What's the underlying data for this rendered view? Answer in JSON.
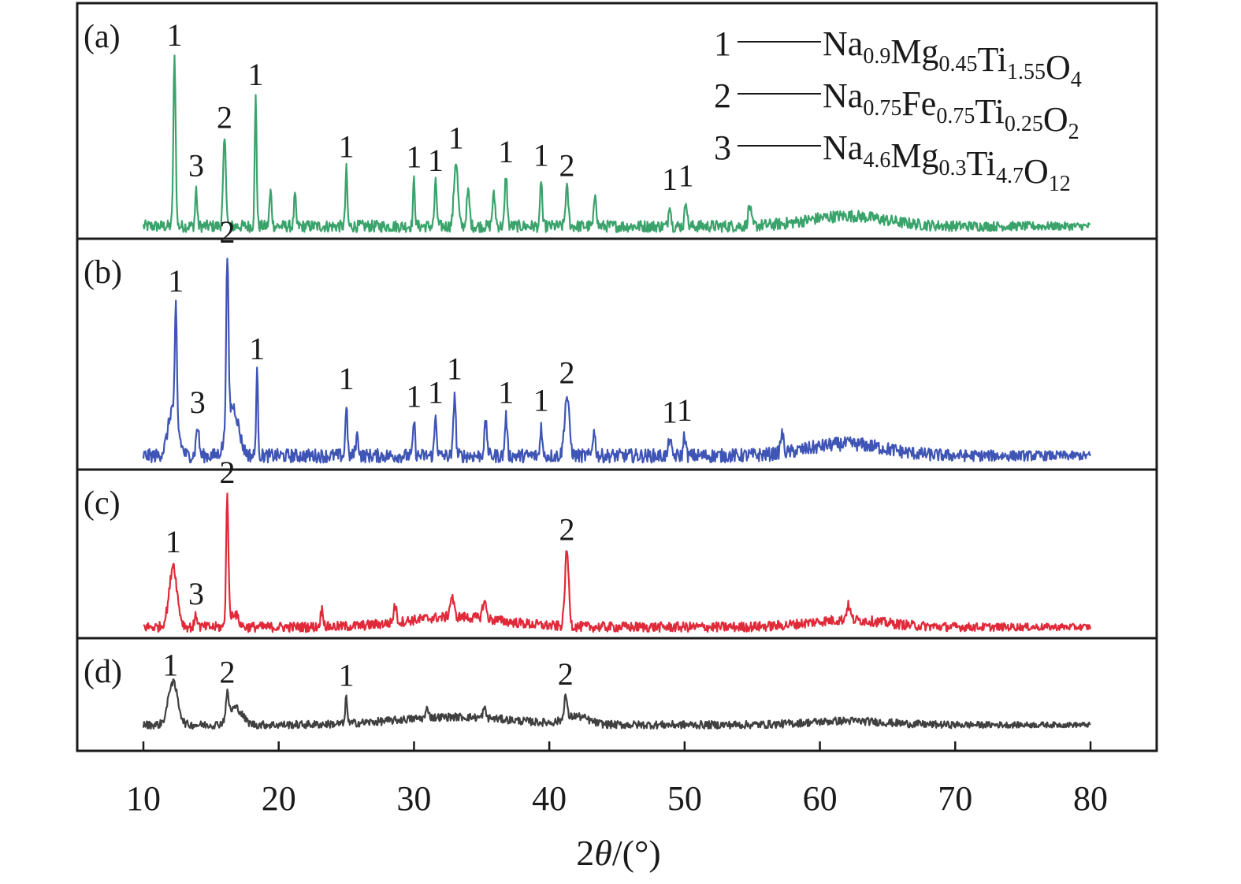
{
  "chart_data": {
    "type": "line",
    "title": "",
    "xlabel_parts": {
      "pre": "2",
      "italic": "θ",
      "post": "/(°)"
    },
    "ylabel": "",
    "xlim": [
      10,
      80
    ],
    "x_ticks": [
      "10",
      "20",
      "30",
      "40",
      "50",
      "60",
      "70",
      "80"
    ],
    "grid": false,
    "legend_position": "top-right",
    "legend": [
      {
        "key": "1",
        "parts": [
          {
            "t": "Na",
            "s": "0.9"
          },
          {
            "t": "Mg",
            "s": "0.45"
          },
          {
            "t": "Ti",
            "s": "1.55"
          },
          {
            "t": "O",
            "s": "4"
          }
        ]
      },
      {
        "key": "2",
        "parts": [
          {
            "t": "Na",
            "s": "0.75"
          },
          {
            "t": "Fe",
            "s": "0.75"
          },
          {
            "t": "Ti",
            "s": "0.25"
          },
          {
            "t": "O",
            "s": "2"
          }
        ]
      },
      {
        "key": "3",
        "parts": [
          {
            "t": "Na",
            "s": "4.6"
          },
          {
            "t": "Mg",
            "s": "0.3"
          },
          {
            "t": "Ti",
            "s": "4.7"
          },
          {
            "t": "O",
            "s": "12"
          }
        ]
      }
    ],
    "panels": [
      {
        "label": "(a)",
        "color": "#3aa36b",
        "baseline": 0.05,
        "noise": 0.035,
        "humps": [
          {
            "c": 62,
            "w": 4,
            "h": 0.06
          }
        ],
        "peaks": [
          {
            "x": 12.3,
            "h": 0.98,
            "w": 0.12,
            "label": "1"
          },
          {
            "x": 13.9,
            "h": 0.22,
            "w": 0.1,
            "label": "3"
          },
          {
            "x": 16.0,
            "h": 0.5,
            "w": 0.15,
            "label": "2"
          },
          {
            "x": 18.3,
            "h": 0.75,
            "w": 0.1,
            "label": "1"
          },
          {
            "x": 19.4,
            "h": 0.2,
            "w": 0.12
          },
          {
            "x": 21.2,
            "h": 0.18,
            "w": 0.1
          },
          {
            "x": 25.0,
            "h": 0.33,
            "w": 0.1,
            "label": "1"
          },
          {
            "x": 30.0,
            "h": 0.27,
            "w": 0.1,
            "label": "1"
          },
          {
            "x": 31.6,
            "h": 0.25,
            "w": 0.12,
            "label": "1"
          },
          {
            "x": 33.1,
            "h": 0.38,
            "w": 0.2,
            "label": "1"
          },
          {
            "x": 34.0,
            "h": 0.2,
            "w": 0.15
          },
          {
            "x": 35.9,
            "h": 0.18,
            "w": 0.15
          },
          {
            "x": 36.8,
            "h": 0.3,
            "w": 0.12,
            "label": "1"
          },
          {
            "x": 39.4,
            "h": 0.28,
            "w": 0.1,
            "label": "1"
          },
          {
            "x": 41.3,
            "h": 0.22,
            "w": 0.15,
            "label": "2"
          },
          {
            "x": 43.4,
            "h": 0.2,
            "w": 0.12
          },
          {
            "x": 48.9,
            "h": 0.14,
            "w": 0.12,
            "label": "1"
          },
          {
            "x": 50.1,
            "h": 0.16,
            "w": 0.12,
            "label": "1"
          },
          {
            "x": 54.8,
            "h": 0.12,
            "w": 0.15
          }
        ]
      },
      {
        "label": "(b)",
        "color": "#3f55b5",
        "baseline": 0.05,
        "noise": 0.035,
        "humps": [
          {
            "c": 12.2,
            "w": 0.5,
            "h": 0.25
          },
          {
            "c": 16.6,
            "w": 0.6,
            "h": 0.25
          },
          {
            "c": 62,
            "w": 4,
            "h": 0.06
          }
        ],
        "peaks": [
          {
            "x": 12.4,
            "h": 0.55,
            "w": 0.1,
            "label": "1"
          },
          {
            "x": 14.0,
            "h": 0.15,
            "w": 0.15,
            "label": "3"
          },
          {
            "x": 16.2,
            "h": 0.85,
            "w": 0.12,
            "label": "2"
          },
          {
            "x": 18.4,
            "h": 0.42,
            "w": 0.1,
            "label": "1"
          },
          {
            "x": 25.0,
            "h": 0.27,
            "w": 0.1,
            "label": "1"
          },
          {
            "x": 25.8,
            "h": 0.1,
            "w": 0.15
          },
          {
            "x": 30.0,
            "h": 0.18,
            "w": 0.1,
            "label": "1"
          },
          {
            "x": 31.6,
            "h": 0.2,
            "w": 0.12,
            "label": "1"
          },
          {
            "x": 33.0,
            "h": 0.32,
            "w": 0.12,
            "label": "1"
          },
          {
            "x": 35.3,
            "h": 0.16,
            "w": 0.15
          },
          {
            "x": 36.8,
            "h": 0.2,
            "w": 0.12,
            "label": "1"
          },
          {
            "x": 39.4,
            "h": 0.16,
            "w": 0.1,
            "label": "1"
          },
          {
            "x": 41.3,
            "h": 0.3,
            "w": 0.25,
            "label": "2"
          },
          {
            "x": 43.3,
            "h": 0.12,
            "w": 0.15
          },
          {
            "x": 48.9,
            "h": 0.1,
            "w": 0.12,
            "label": "1"
          },
          {
            "x": 50.0,
            "h": 0.11,
            "w": 0.12,
            "label": "1"
          },
          {
            "x": 57.2,
            "h": 0.1,
            "w": 0.15
          }
        ]
      },
      {
        "label": "(c)",
        "color": "#e02a3a",
        "baseline": 0.05,
        "noise": 0.035,
        "humps": [
          {
            "c": 12.2,
            "w": 0.45,
            "h": 0.36
          },
          {
            "c": 16.7,
            "w": 0.4,
            "h": 0.1
          },
          {
            "c": 33,
            "w": 5,
            "h": 0.07
          },
          {
            "c": 62,
            "w": 4,
            "h": 0.05
          }
        ],
        "peaks": [
          {
            "x": 12.2,
            "h": 0.08,
            "w": 0.2,
            "label": "1"
          },
          {
            "x": 13.9,
            "h": 0.08,
            "w": 0.15,
            "label": "3"
          },
          {
            "x": 16.2,
            "h": 0.9,
            "w": 0.12,
            "label": "2"
          },
          {
            "x": 23.2,
            "h": 0.12,
            "w": 0.15
          },
          {
            "x": 28.6,
            "h": 0.12,
            "w": 0.15
          },
          {
            "x": 32.8,
            "h": 0.14,
            "w": 0.2
          },
          {
            "x": 35.2,
            "h": 0.12,
            "w": 0.2
          },
          {
            "x": 41.3,
            "h": 0.52,
            "w": 0.2,
            "label": "2"
          },
          {
            "x": 62.1,
            "h": 0.1,
            "w": 0.2
          }
        ]
      },
      {
        "label": "(d)",
        "color": "#404040",
        "baseline": 0.1,
        "noise": 0.05,
        "humps": [
          {
            "c": 12.2,
            "w": 0.5,
            "h": 0.52
          },
          {
            "c": 16.8,
            "w": 0.7,
            "h": 0.22
          },
          {
            "c": 33,
            "w": 6,
            "h": 0.1
          },
          {
            "c": 42,
            "w": 1.2,
            "h": 0.1
          },
          {
            "c": 62,
            "w": 4,
            "h": 0.05
          }
        ],
        "peaks": [
          {
            "x": 12.0,
            "h": 0.05,
            "w": 0.2,
            "label": "1"
          },
          {
            "x": 16.2,
            "h": 0.3,
            "w": 0.15,
            "label": "2"
          },
          {
            "x": 25.0,
            "h": 0.35,
            "w": 0.1,
            "label": "1"
          },
          {
            "x": 31.0,
            "h": 0.12,
            "w": 0.15
          },
          {
            "x": 35.2,
            "h": 0.12,
            "w": 0.15
          },
          {
            "x": 41.2,
            "h": 0.3,
            "w": 0.15,
            "label": "2"
          }
        ]
      }
    ]
  }
}
